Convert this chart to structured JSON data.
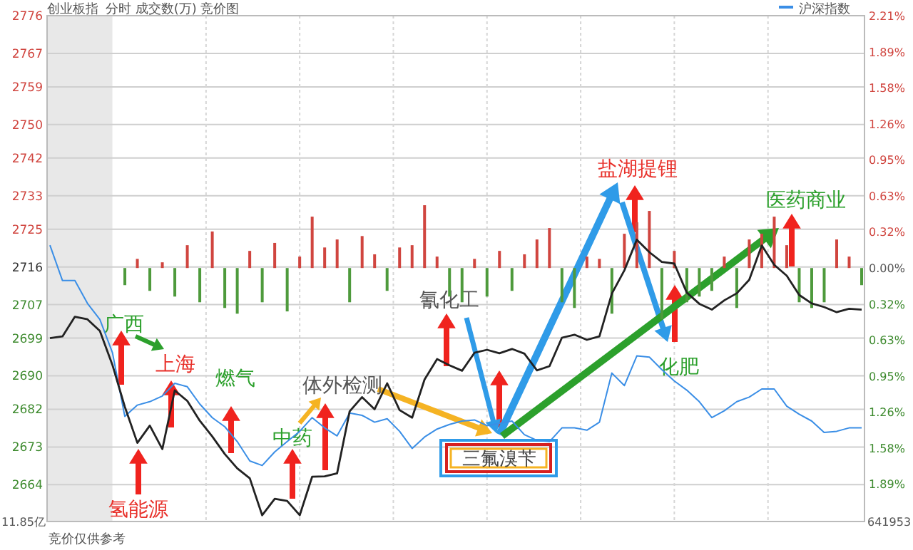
{
  "chart_data": {
    "type": "line",
    "title": "创业板指",
    "subtitle": "分时 成交数(万) 竞价图",
    "legend": "top right",
    "grid": true,
    "tick_labels": "y",
    "categories": [
      null,
      null,
      null,
      null,
      null,
      null,
      null,
      null,
      null,
      null,
      null,
      null,
      null,
      null,
      null,
      null,
      null,
      null,
      null,
      null,
      null,
      null,
      null,
      null,
      null,
      null,
      null,
      null,
      null,
      null,
      null,
      null,
      null,
      null,
      null,
      null,
      null,
      null,
      null,
      null,
      null,
      null,
      null,
      null,
      null,
      null,
      null,
      null,
      null,
      null,
      null,
      null,
      null,
      null,
      null,
      null,
      null,
      null,
      null,
      null,
      null,
      null,
      null,
      null,
      null,
      null
    ],
    "ylim": [
      2655.2,
      2776
    ],
    "yticks": [
      2776,
      2767,
      2759,
      2750,
      2742,
      2733,
      2725,
      2716,
      2707,
      2699,
      2690,
      2682,
      2673,
      2664
    ],
    "y2lim": [
      -2.22,
      2.21
    ],
    "y2ticks": [
      {
        "value": 2.21,
        "label": "2.21%"
      },
      {
        "value": 1.89,
        "label": "1.89%"
      },
      {
        "value": 1.58,
        "label": "1.58%"
      },
      {
        "value": 1.26,
        "label": "1.26%"
      },
      {
        "value": 0.95,
        "label": "0.95%"
      },
      {
        "value": 0.63,
        "label": "0.63%"
      },
      {
        "value": 0.32,
        "label": "0.32%"
      },
      {
        "value": 0,
        "label": "0.00%"
      },
      {
        "value": -0.32,
        "label": "0.32%"
      },
      {
        "value": -0.63,
        "label": "0.63%"
      },
      {
        "value": -0.95,
        "label": "0.95%"
      },
      {
        "value": -1.26,
        "label": "1.26%"
      },
      {
        "value": -1.58,
        "label": "1.58%"
      },
      {
        "value": -1.89,
        "label": "1.89%"
      }
    ],
    "series": [
      {
        "type": "bar",
        "axis": "y2",
        "color": "#d0453f",
        "values": [
          null,
          null,
          null,
          null,
          null,
          null,
          null,
          0.08,
          null,
          0.05,
          null,
          0.2,
          null,
          0.32,
          null,
          null,
          0.15,
          null,
          0.22,
          null,
          0.1,
          0.45,
          0.18,
          0.25,
          null,
          0.28,
          0.12,
          null,
          0.18,
          0.2,
          0.55,
          0.1,
          null,
          null,
          0.08,
          null,
          0.15,
          null,
          0.12,
          0.25,
          0.35,
          null,
          null,
          0.1,
          0.08,
          null,
          0.3,
          0.4,
          0.5,
          null,
          0.15,
          null,
          null,
          null,
          0.1,
          null,
          0.25,
          0.3,
          0.45,
          0.2,
          null,
          null,
          null,
          0.25,
          0.1,
          null
        ]
      },
      {
        "type": "bar",
        "axis": "y2",
        "color": "#4e9a3c",
        "values": [
          null,
          null,
          null,
          null,
          null,
          null,
          -0.15,
          null,
          -0.2,
          null,
          -0.25,
          null,
          -0.3,
          null,
          -0.35,
          -0.4,
          null,
          -0.3,
          null,
          -0.38,
          null,
          null,
          null,
          null,
          -0.3,
          null,
          null,
          -0.2,
          null,
          null,
          null,
          null,
          -0.25,
          -0.3,
          null,
          -0.25,
          null,
          -0.2,
          null,
          null,
          null,
          -0.3,
          -0.35,
          null,
          null,
          -0.4,
          null,
          null,
          null,
          -0.45,
          null,
          -0.3,
          -0.25,
          -0.2,
          null,
          -0.35,
          null,
          null,
          null,
          null,
          -0.3,
          -0.35,
          -0.3,
          null,
          null,
          -0.15
        ]
      },
      {
        "type": "line",
        "axis": "y2",
        "name": "沪深指数",
        "color": "#3a8ee6",
        "values": [
          0.2,
          -0.11,
          -0.11,
          -0.31,
          -0.45,
          -0.74,
          -1.3,
          -1.2,
          -1.17,
          -1.12,
          -1.01,
          -1.04,
          -1.19,
          -1.31,
          -1.39,
          -1.52,
          -1.69,
          -1.73,
          -1.61,
          -1.52,
          -1.43,
          -1.31,
          -1.4,
          -1.47,
          -1.27,
          -1.29,
          -1.35,
          -1.32,
          -1.43,
          -1.58,
          -1.48,
          -1.41,
          -1.37,
          -1.34,
          -1.33,
          -1.38,
          -1.36,
          -1.34,
          -1.46,
          -1.51,
          -1.52,
          -1.4,
          -1.4,
          -1.42,
          -1.35,
          -0.92,
          -1.03,
          -0.77,
          -0.78,
          -0.89,
          -0.99,
          -1.07,
          -1.17,
          -1.31,
          -1.25,
          -1.17,
          -1.13,
          -1.06,
          -1.06,
          -1.21,
          -1.28,
          -1.34,
          -1.44,
          -1.43,
          -1.4,
          -1.4
        ]
      },
      {
        "color": "#222222",
        "values": [
          2699.0,
          2699.4,
          2704.1,
          2703.5,
          2700.7,
          2692.6,
          2682.6,
          2674.0,
          2678.1,
          2672.5,
          2686.5,
          2684.0,
          2679.3,
          2675.5,
          2671.3,
          2667.9,
          2665.5,
          2656.7,
          2660.6,
          2660.1,
          2656.7,
          2665.9,
          2666.0,
          2666.7,
          2681.5,
          2684.9,
          2682.0,
          2688.2,
          2681.8,
          2680.0,
          2689.1,
          2694.0,
          2692.5,
          2691.2,
          2695.5,
          2696.2,
          2695.4,
          2696.4,
          2695.3,
          2691.3,
          2692.3,
          2699.1,
          2699.8,
          2698.6,
          2699.4,
          2709.6,
          2715.2,
          2722.5,
          2719.5,
          2717.2,
          2716.8,
          2709.9,
          2707.2,
          2705.8,
          2708.0,
          2709.7,
          2712.9,
          2721.1,
          2716.5,
          2713.9,
          2709.3,
          2707.3,
          2706.4,
          2705.2,
          2706.0,
          2705.8
        ]
      }
    ],
    "annotations": [
      "广西",
      "上海",
      "燃气",
      "中药",
      "体外检测",
      "氰化工",
      "盐湖提锂",
      "化肥",
      "医药商业",
      "氢能源",
      "三氟溴苄",
      "竞价仅供参考",
      "11.85亿",
      "641953"
    ]
  }
}
